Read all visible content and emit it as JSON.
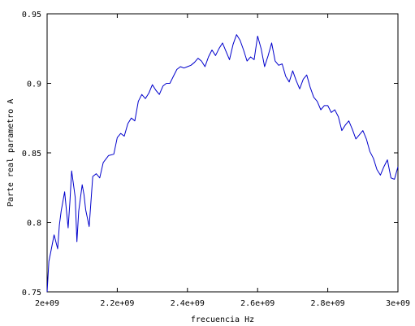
{
  "chart_data": {
    "type": "line",
    "title": "",
    "xlabel": "frecuencia Hz",
    "ylabel": "Parte real parametro A",
    "xlim": [
      2000000000,
      3000000000
    ],
    "ylim": [
      0.75,
      0.95
    ],
    "x_ticks": [
      {
        "value": 2000000000,
        "label": "2e+09"
      },
      {
        "value": 2200000000,
        "label": "2.2e+09"
      },
      {
        "value": 2400000000,
        "label": "2.4e+09"
      },
      {
        "value": 2600000000,
        "label": "2.6e+09"
      },
      {
        "value": 2800000000,
        "label": "2.8e+09"
      },
      {
        "value": 3000000000,
        "label": "3e+09"
      }
    ],
    "y_ticks": [
      {
        "value": 0.75,
        "label": "0.75"
      },
      {
        "value": 0.8,
        "label": "0.8"
      },
      {
        "value": 0.85,
        "label": "0.85"
      },
      {
        "value": 0.9,
        "label": "0.9"
      },
      {
        "value": 0.95,
        "label": "0.95"
      }
    ],
    "grid": false,
    "series": [
      {
        "color": "#0000cc",
        "x": [
          2000000000,
          2005000000,
          2010000000,
          2020000000,
          2030000000,
          2035000000,
          2040000000,
          2050000000,
          2060000000,
          2065000000,
          2070000000,
          2080000000,
          2085000000,
          2090000000,
          2100000000,
          2105000000,
          2110000000,
          2120000000,
          2125000000,
          2130000000,
          2140000000,
          2150000000,
          2160000000,
          2175000000,
          2190000000,
          2200000000,
          2210000000,
          2220000000,
          2230000000,
          2240000000,
          2250000000,
          2260000000,
          2270000000,
          2280000000,
          2290000000,
          2300000000,
          2310000000,
          2320000000,
          2330000000,
          2340000000,
          2350000000,
          2360000000,
          2370000000,
          2380000000,
          2390000000,
          2400000000,
          2410000000,
          2420000000,
          2430000000,
          2440000000,
          2450000000,
          2460000000,
          2470000000,
          2480000000,
          2490000000,
          2500000000,
          2510000000,
          2520000000,
          2530000000,
          2540000000,
          2550000000,
          2560000000,
          2570000000,
          2580000000,
          2590000000,
          2600000000,
          2610000000,
          2620000000,
          2630000000,
          2640000000,
          2650000000,
          2660000000,
          2670000000,
          2680000000,
          2690000000,
          2700000000,
          2710000000,
          2720000000,
          2730000000,
          2740000000,
          2750000000,
          2760000000,
          2770000000,
          2780000000,
          2790000000,
          2800000000,
          2810000000,
          2820000000,
          2830000000,
          2840000000,
          2850000000,
          2860000000,
          2870000000,
          2880000000,
          2890000000,
          2900000000,
          2910000000,
          2920000000,
          2930000000,
          2940000000,
          2950000000,
          2960000000,
          2970000000,
          2980000000,
          2990000000,
          3000000000
        ],
        "y": [
          0.75,
          0.772,
          0.778,
          0.791,
          0.781,
          0.798,
          0.808,
          0.822,
          0.796,
          0.815,
          0.837,
          0.818,
          0.786,
          0.808,
          0.827,
          0.82,
          0.809,
          0.797,
          0.815,
          0.833,
          0.835,
          0.832,
          0.843,
          0.848,
          0.849,
          0.861,
          0.864,
          0.862,
          0.871,
          0.875,
          0.873,
          0.887,
          0.892,
          0.889,
          0.893,
          0.899,
          0.895,
          0.892,
          0.898,
          0.9,
          0.9,
          0.905,
          0.91,
          0.912,
          0.911,
          0.912,
          0.913,
          0.915,
          0.918,
          0.916,
          0.912,
          0.919,
          0.924,
          0.92,
          0.925,
          0.929,
          0.923,
          0.917,
          0.928,
          0.935,
          0.931,
          0.924,
          0.916,
          0.919,
          0.917,
          0.934,
          0.925,
          0.912,
          0.92,
          0.929,
          0.916,
          0.913,
          0.914,
          0.905,
          0.901,
          0.909,
          0.902,
          0.896,
          0.903,
          0.906,
          0.897,
          0.89,
          0.887,
          0.881,
          0.884,
          0.884,
          0.879,
          0.881,
          0.876,
          0.866,
          0.87,
          0.873,
          0.867,
          0.86,
          0.863,
          0.866,
          0.86,
          0.851,
          0.846,
          0.838,
          0.834,
          0.84,
          0.845,
          0.832,
          0.831,
          0.84
        ]
      }
    ]
  }
}
